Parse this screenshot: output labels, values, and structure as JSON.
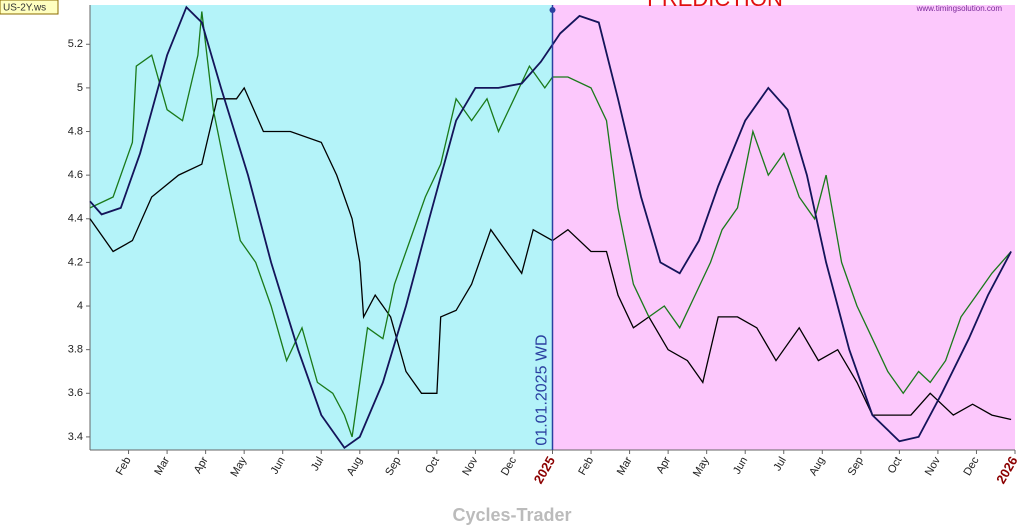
{
  "chart_data": {
    "type": "line",
    "title": "PREDICTION",
    "source": "www.timingsolution.com",
    "footer": "Cycles-Trader",
    "annotation": {
      "text": "01.01.2025 WD",
      "x": 12
    },
    "xlim": [
      0,
      24
    ],
    "xticks": [
      {
        "value": 1,
        "label": "Feb"
      },
      {
        "value": 2,
        "label": "Mar"
      },
      {
        "value": 3,
        "label": "Apr"
      },
      {
        "value": 4,
        "label": "May"
      },
      {
        "value": 5,
        "label": "Jun"
      },
      {
        "value": 6,
        "label": "Jul"
      },
      {
        "value": 7,
        "label": "Aug"
      },
      {
        "value": 8,
        "label": "Sep"
      },
      {
        "value": 9,
        "label": "Oct"
      },
      {
        "value": 10,
        "label": "Nov"
      },
      {
        "value": 11,
        "label": "Dec"
      },
      {
        "value": 12,
        "label": "2025"
      },
      {
        "value": 13,
        "label": "Feb"
      },
      {
        "value": 14,
        "label": "Mar"
      },
      {
        "value": 15,
        "label": "Apr"
      },
      {
        "value": 16,
        "label": "May"
      },
      {
        "value": 17,
        "label": "Jun"
      },
      {
        "value": 18,
        "label": "Jul"
      },
      {
        "value": 19,
        "label": "Aug"
      },
      {
        "value": 20,
        "label": "Sep"
      },
      {
        "value": 21,
        "label": "Oct"
      },
      {
        "value": 22,
        "label": "Nov"
      },
      {
        "value": 23,
        "label": "Dec"
      },
      {
        "value": 24,
        "label": "2026"
      }
    ],
    "ylim": [
      3.34,
      5.38
    ],
    "yticks": [
      3.4,
      3.6,
      3.8,
      4,
      4.2,
      4.4,
      4.6,
      4.8,
      5,
      5.2
    ],
    "series": [
      {
        "name": "US-2Y.ws",
        "color": "#000000",
        "x": [
          0,
          0.6,
          1.1,
          1.6,
          2.3,
          2.9,
          3.3,
          3.8,
          4.0,
          4.5,
          5.2,
          6.0,
          6.4,
          6.8,
          7.0,
          7.1,
          7.4,
          7.8,
          8.2,
          8.6,
          9.0,
          9.1,
          9.5,
          9.9,
          10.4,
          10.8,
          11.2,
          11.5,
          12.0,
          12.4,
          13.0,
          13.4,
          13.7,
          14.1,
          14.5,
          15.0,
          15.5,
          15.9,
          16.3,
          16.8,
          17.3,
          17.8,
          18.4,
          18.9,
          19.4,
          19.9,
          20.3,
          20.8,
          21.3,
          21.8,
          22.4,
          22.9,
          23.4,
          23.9
        ],
        "values": [
          4.4,
          4.25,
          4.3,
          4.5,
          4.6,
          4.65,
          4.95,
          4.95,
          5.0,
          4.8,
          4.8,
          4.75,
          4.6,
          4.4,
          4.2,
          3.95,
          4.05,
          3.95,
          3.7,
          3.6,
          3.6,
          3.95,
          3.98,
          4.1,
          4.35,
          4.25,
          4.15,
          4.35,
          4.3,
          4.35,
          4.25,
          4.25,
          4.05,
          3.9,
          3.95,
          3.8,
          3.75,
          3.65,
          3.95,
          3.95,
          3.9,
          3.75,
          3.9,
          3.75,
          3.8,
          3.65,
          3.5,
          3.5,
          3.5,
          3.6,
          3.5,
          3.55,
          3.5,
          3.48
        ]
      },
      {
        "color": "#1a7a1a",
        "x": [
          0,
          0.6,
          1.1,
          1.2,
          1.6,
          2.0,
          2.4,
          2.8,
          2.9,
          3.2,
          3.6,
          3.9,
          4.3,
          4.7,
          5.1,
          5.5,
          5.9,
          6.3,
          6.6,
          6.8,
          7.2,
          7.6,
          7.9,
          8.3,
          8.7,
          9.1,
          9.5,
          9.9,
          10.3,
          10.6,
          11.0,
          11.4,
          11.8,
          12.0,
          12.4,
          13.0,
          13.4,
          13.7,
          14.1,
          14.5,
          14.9,
          15.3,
          15.7,
          16.1,
          16.4,
          16.8,
          17.2,
          17.6,
          18.0,
          18.4,
          18.8,
          19.1,
          19.5,
          19.9,
          20.3,
          20.7,
          21.1,
          21.5,
          21.8,
          22.2,
          22.6,
          23.0,
          23.4,
          23.9
        ],
        "values": [
          4.45,
          4.5,
          4.75,
          5.1,
          5.15,
          4.9,
          4.85,
          5.15,
          5.35,
          4.9,
          4.55,
          4.3,
          4.2,
          4.0,
          3.75,
          3.9,
          3.65,
          3.6,
          3.5,
          3.4,
          3.9,
          3.85,
          4.1,
          4.3,
          4.5,
          4.65,
          4.95,
          4.85,
          4.95,
          4.8,
          4.95,
          5.1,
          5.0,
          5.05,
          5.05,
          5.0,
          4.85,
          4.45,
          4.1,
          3.95,
          4.0,
          3.9,
          4.05,
          4.2,
          4.35,
          4.45,
          4.8,
          4.6,
          4.7,
          4.5,
          4.4,
          4.6,
          4.2,
          4.0,
          3.85,
          3.7,
          3.6,
          3.7,
          3.65,
          3.75,
          3.95,
          4.05,
          4.15,
          4.25
        ]
      },
      {
        "color": "#14145a",
        "x": [
          0,
          0.3,
          0.8,
          1.3,
          2.0,
          2.5,
          2.9,
          3.4,
          4.1,
          4.7,
          5.4,
          6.0,
          6.6,
          7.0,
          7.6,
          8.2,
          8.8,
          9.5,
          10.0,
          10.6,
          11.2,
          11.7,
          12.2,
          12.7,
          13.2,
          13.7,
          14.3,
          14.8,
          15.3,
          15.8,
          16.3,
          17.0,
          17.6,
          18.1,
          18.6,
          19.1,
          19.7,
          20.3,
          21.0,
          21.5,
          22.1,
          22.8,
          23.3,
          23.9
        ],
        "values": [
          4.48,
          4.42,
          4.45,
          4.7,
          5.15,
          5.37,
          5.3,
          5.0,
          4.6,
          4.2,
          3.8,
          3.5,
          3.35,
          3.4,
          3.65,
          4.0,
          4.4,
          4.85,
          5.0,
          5.0,
          5.02,
          5.12,
          5.25,
          5.33,
          5.3,
          4.95,
          4.5,
          4.2,
          4.15,
          4.3,
          4.55,
          4.85,
          5.0,
          4.9,
          4.6,
          4.2,
          3.8,
          3.5,
          3.38,
          3.4,
          3.6,
          3.85,
          4.05,
          4.25
        ]
      }
    ]
  }
}
